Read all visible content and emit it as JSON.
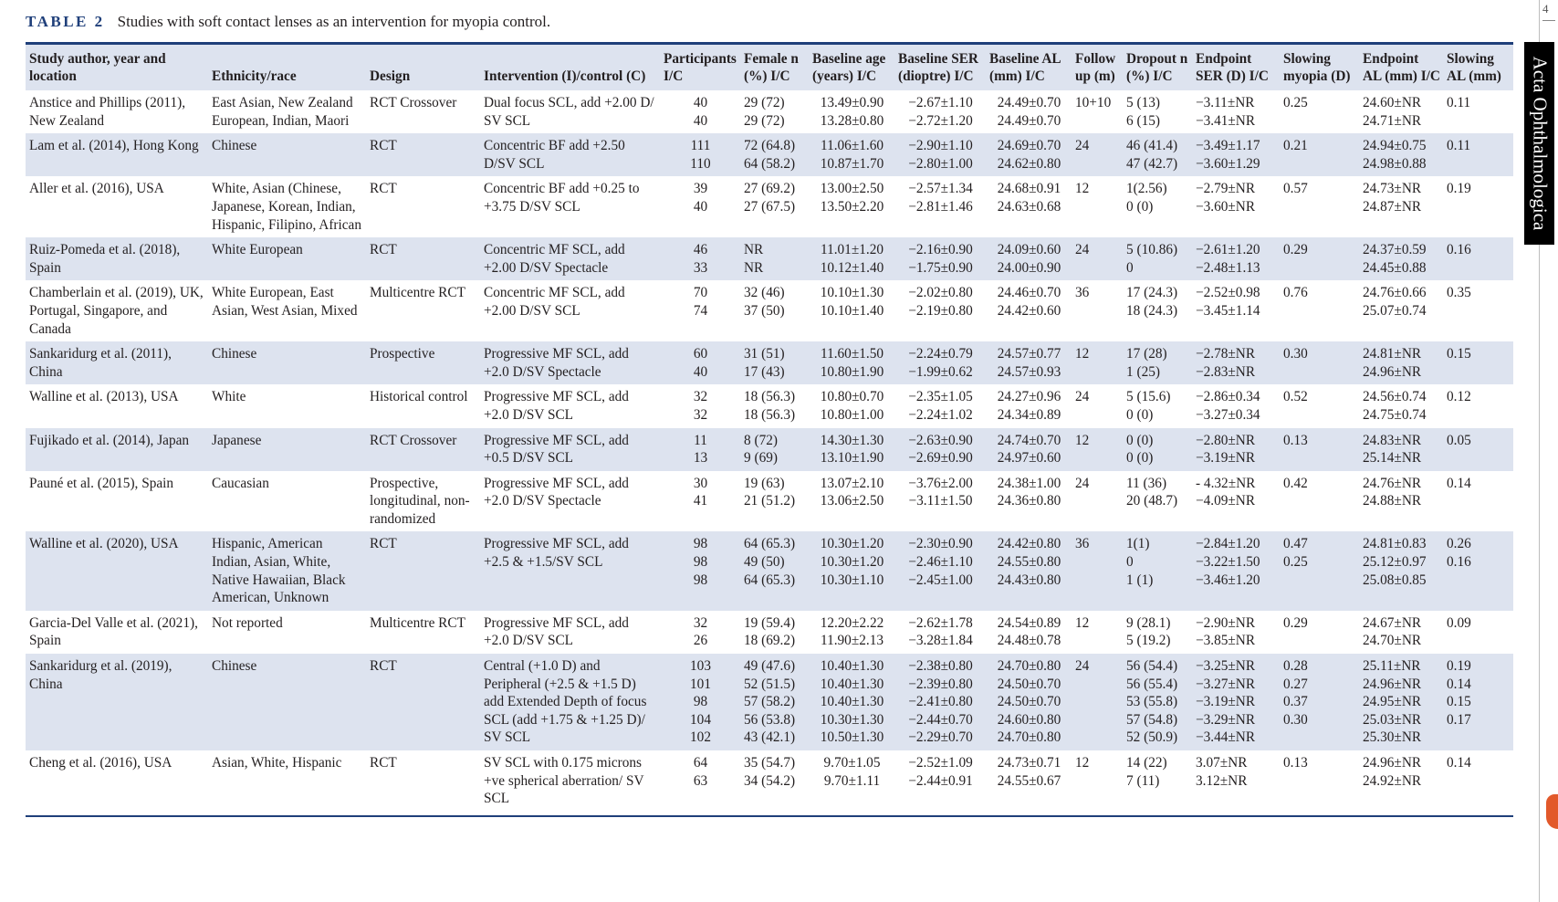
{
  "caption": {
    "label": "TABLE 2",
    "text": "Studies with soft contact lenses as an intervention for myopia control."
  },
  "journal_name": "Acta Ophthalmologica",
  "page_number": "4",
  "headers": [
    "Study author, year and location",
    "Ethnicity/race",
    "Design",
    "Intervention (I)/control (C)",
    "Participants I/C",
    "Female n (%) I/C",
    "Baseline age (years) I/C",
    "Baseline SER (dioptre) I/C",
    "Baseline AL (mm) I/C",
    "Follow up (m)",
    "Dropout n (%) I/C",
    "Endpoint SER (D) I/C",
    "Slowing myopia (D)",
    "Endpoint AL (mm) I/C",
    "Slowing AL (mm)"
  ],
  "rows": [
    {
      "study": "Anstice and Phillips (2011), New Zealand",
      "ethnicity": "East Asian, New Zealand European, Indian, Maori",
      "design": "RCT Crossover",
      "intervention": "Dual focus SCL, add +2.00 D/ SV SCL",
      "participants": "40\n40",
      "female": "29 (72)\n29 (72)",
      "age": "13.49±0.90\n13.28±0.80",
      "ser": "−2.67±1.10\n−2.72±1.20",
      "al": "24.49±0.70\n24.49±0.70",
      "followup": "10+10",
      "dropout": "5 (13)\n6 (15)",
      "endpoint_ser": "−3.11±NR\n−3.41±NR",
      "slowing_myopia": "0.25",
      "endpoint_al": "24.60±NR\n24.71±NR",
      "slowing_al": "0.11"
    },
    {
      "study": "Lam et al. (2014), Hong Kong",
      "ethnicity": "Chinese",
      "design": "RCT",
      "intervention": "Concentric BF add +2.50 D/SV SCL",
      "participants": "111\n110",
      "female": "72 (64.8)\n64 (58.2)",
      "age": "11.06±1.60\n10.87±1.70",
      "ser": "−2.90±1.10\n−2.80±1.00",
      "al": "24.69±0.70\n24.62±0.80",
      "followup": "24",
      "dropout": "46 (41.4)\n47 (42.7)",
      "endpoint_ser": "−3.49±1.17\n−3.60±1.29",
      "slowing_myopia": "0.21",
      "endpoint_al": "24.94±0.75\n24.98±0.88",
      "slowing_al": "0.11"
    },
    {
      "study": "Aller et al. (2016), USA",
      "ethnicity": "White, Asian (Chinese, Japanese, Korean, Indian, Hispanic, Filipino, African",
      "design": "RCT",
      "intervention": "Concentric BF add +0.25 to +3.75 D/SV SCL",
      "participants": "39\n40",
      "female": "27 (69.2)\n27 (67.5)",
      "age": "13.00±2.50\n13.50±2.20",
      "ser": "−2.57±1.34\n−2.81±1.46",
      "al": "24.68±0.91\n24.63±0.68",
      "followup": "12",
      "dropout": "1(2.56)\n0 (0)",
      "endpoint_ser": "−2.79±NR\n−3.60±NR",
      "slowing_myopia": "0.57",
      "endpoint_al": "24.73±NR\n24.87±NR",
      "slowing_al": "0.19"
    },
    {
      "study": "Ruiz-Pomeda et al. (2018), Spain",
      "ethnicity": "White European",
      "design": "RCT",
      "intervention": "Concentric MF SCL, add +2.00 D/SV Spectacle",
      "participants": "46\n33",
      "female": "NR\nNR",
      "age": "11.01±1.20\n10.12±1.40",
      "ser": "−2.16±0.90\n−1.75±0.90",
      "al": "24.09±0.60\n24.00±0.90",
      "followup": "24",
      "dropout": "5 (10.86)\n0",
      "endpoint_ser": "−2.61±1.20\n−2.48±1.13",
      "slowing_myopia": "0.29",
      "endpoint_al": "24.37±0.59\n24.45±0.88",
      "slowing_al": "0.16"
    },
    {
      "study": "Chamberlain et al. (2019), UK, Portugal, Singapore, and Canada",
      "ethnicity": "White European, East Asian, West Asian, Mixed",
      "design": "Multicentre RCT",
      "intervention": "Concentric MF SCL, add +2.00 D/SV SCL",
      "participants": "70\n74",
      "female": "32 (46)\n37 (50)",
      "age": "10.10±1.30\n10.10±1.40",
      "ser": "−2.02±0.80\n−2.19±0.80",
      "al": "24.46±0.70\n24.42±0.60",
      "followup": "36",
      "dropout": "17 (24.3)\n18 (24.3)",
      "endpoint_ser": "−2.52±0.98\n−3.45±1.14",
      "slowing_myopia": "0.76",
      "endpoint_al": "24.76±0.66\n25.07±0.74",
      "slowing_al": "0.35"
    },
    {
      "study": "Sankaridurg et al. (2011), China",
      "ethnicity": "Chinese",
      "design": "Prospective",
      "intervention": "Progressive MF SCL, add +2.0 D/SV Spectacle",
      "participants": "60\n40",
      "female": "31 (51)\n17 (43)",
      "age": "11.60±1.50\n10.80±1.90",
      "ser": "−2.24±0.79\n−1.99±0.62",
      "al": "24.57±0.77\n24.57±0.93",
      "followup": "12",
      "dropout": "17 (28)\n1 (25)",
      "endpoint_ser": "−2.78±NR\n−2.83±NR",
      "slowing_myopia": "0.30",
      "endpoint_al": "24.81±NR\n24.96±NR",
      "slowing_al": "0.15"
    },
    {
      "study": "Walline et al. (2013), USA",
      "ethnicity": "White",
      "design": "Historical control",
      "intervention": "Progressive MF SCL, add +2.0 D/SV SCL",
      "participants": "32\n32",
      "female": "18 (56.3)\n18 (56.3)",
      "age": "10.80±0.70\n10.80±1.00",
      "ser": "−2.35±1.05\n−2.24±1.02",
      "al": "24.27±0.96\n24.34±0.89",
      "followup": "24",
      "dropout": "5 (15.6)\n0 (0)",
      "endpoint_ser": "−2.86±0.34\n−3.27±0.34",
      "slowing_myopia": "0.52",
      "endpoint_al": "24.56±0.74\n24.75±0.74",
      "slowing_al": "0.12"
    },
    {
      "study": "Fujikado et al. (2014), Japan",
      "ethnicity": "Japanese",
      "design": "RCT Crossover",
      "intervention": "Progressive MF SCL, add +0.5 D/SV SCL",
      "participants": "11\n13",
      "female": "8 (72)\n9 (69)",
      "age": "14.30±1.30\n13.10±1.90",
      "ser": "−2.63±0.90\n−2.69±0.90",
      "al": "24.74±0.70\n24.97±0.60",
      "followup": "12",
      "dropout": "0 (0)\n0 (0)",
      "endpoint_ser": "−2.80±NR\n−3.19±NR",
      "slowing_myopia": "0.13",
      "endpoint_al": "24.83±NR\n25.14±NR",
      "slowing_al": "0.05"
    },
    {
      "study": "Pauné et al. (2015), Spain",
      "ethnicity": "Caucasian",
      "design": "Prospective, longitudinal, non-randomized",
      "intervention": "Progressive MF SCL, add +2.0 D/SV Spectacle",
      "participants": "30\n41",
      "female": "19 (63)\n21 (51.2)",
      "age": "13.07±2.10\n13.06±2.50",
      "ser": "−3.76±2.00\n−3.11±1.50",
      "al": "24.38±1.00\n24.36±0.80",
      "followup": "24",
      "dropout": "11 (36)\n20 (48.7)",
      "endpoint_ser": "- 4.32±NR\n−4.09±NR",
      "slowing_myopia": "0.42",
      "endpoint_al": "24.76±NR\n24.88±NR",
      "slowing_al": "0.14"
    },
    {
      "study": "Walline et al. (2020), USA",
      "ethnicity": "Hispanic, American Indian, Asian, White, Native Hawaiian, Black American, Unknown",
      "design": "RCT",
      "intervention": "Progressive MF SCL, add +2.5 & +1.5/SV SCL",
      "participants": "98\n98\n98",
      "female": "64 (65.3)\n49 (50)\n64 (65.3)",
      "age": "10.30±1.20\n10.30±1.20\n10.30±1.10",
      "ser": "−2.30±0.90\n−2.46±1.10\n−2.45±1.00",
      "al": "24.42±0.80\n24.55±0.80\n24.43±0.80",
      "followup": "36",
      "dropout": "1(1)\n0\n1 (1)",
      "endpoint_ser": "−2.84±1.20\n−3.22±1.50\n−3.46±1.20",
      "slowing_myopia": "0.47\n0.25",
      "endpoint_al": "24.81±0.83\n25.12±0.97\n25.08±0.85",
      "slowing_al": "0.26\n0.16"
    },
    {
      "study": "Garcia-Del Valle et al. (2021), Spain",
      "ethnicity": "Not reported",
      "design": "Multicentre RCT",
      "intervention": "Progressive MF SCL, add +2.0 D/SV SCL",
      "participants": "32\n26",
      "female": "19 (59.4)\n18 (69.2)",
      "age": "12.20±2.22\n11.90±2.13",
      "ser": "−2.62±1.78\n−3.28±1.84",
      "al": "24.54±0.89\n24.48±0.78",
      "followup": "12",
      "dropout": "9 (28.1)\n5 (19.2)",
      "endpoint_ser": "−2.90±NR\n−3.85±NR",
      "slowing_myopia": "0.29",
      "endpoint_al": "24.67±NR\n24.70±NR",
      "slowing_al": "0.09"
    },
    {
      "study": "Sankaridurg et al. (2019), China",
      "ethnicity": "Chinese",
      "design": "RCT",
      "intervention": "Central (+1.0 D) and Peripheral (+2.5 & +1.5 D) add Extended Depth of focus SCL (add +1.75 & +1.25 D)/ SV SCL",
      "participants": "103\n101\n98\n104\n102",
      "female": "49 (47.6)\n52 (51.5)\n57 (58.2)\n56 (53.8)\n43 (42.1)",
      "age": "10.40±1.30\n10.40±1.30\n10.40±1.30\n10.30±1.30\n10.50±1.30",
      "ser": "−2.38±0.80\n−2.39±0.80\n−2.41±0.80\n−2.44±0.70\n−2.29±0.70",
      "al": "24.70±0.80\n24.50±0.70\n24.50±0.70\n24.60±0.80\n24.70±0.80",
      "followup": "24",
      "dropout": "56 (54.4)\n56 (55.4)\n53 (55.8)\n57 (54.8)\n52 (50.9)",
      "endpoint_ser": "−3.25±NR\n−3.27±NR\n−3.19±NR\n−3.29±NR\n−3.44±NR",
      "slowing_myopia": "0.28\n0.27\n0.37\n0.30",
      "endpoint_al": "25.11±NR\n24.96±NR\n24.95±NR\n25.03±NR\n25.30±NR",
      "slowing_al": "0.19\n0.14\n0.15\n0.17"
    },
    {
      "study": "Cheng et al. (2016), USA",
      "ethnicity": "Asian, White, Hispanic",
      "design": "RCT",
      "intervention": "SV SCL with 0.175 microns +ve spherical aberration/ SV SCL",
      "participants": "64\n63",
      "female": "35 (54.7)\n34 (54.2)",
      "age": "9.70±1.05\n9.70±1.11",
      "ser": "−2.52±1.09\n−2.44±0.91",
      "al": "24.73±0.71\n24.55±0.67",
      "followup": "12",
      "dropout": "14 (22)\n7 (11)",
      "endpoint_ser": "3.07±NR\n3.12±NR",
      "slowing_myopia": "0.13",
      "endpoint_al": "24.96±NR\n24.92±NR",
      "slowing_al": "0.14"
    }
  ]
}
